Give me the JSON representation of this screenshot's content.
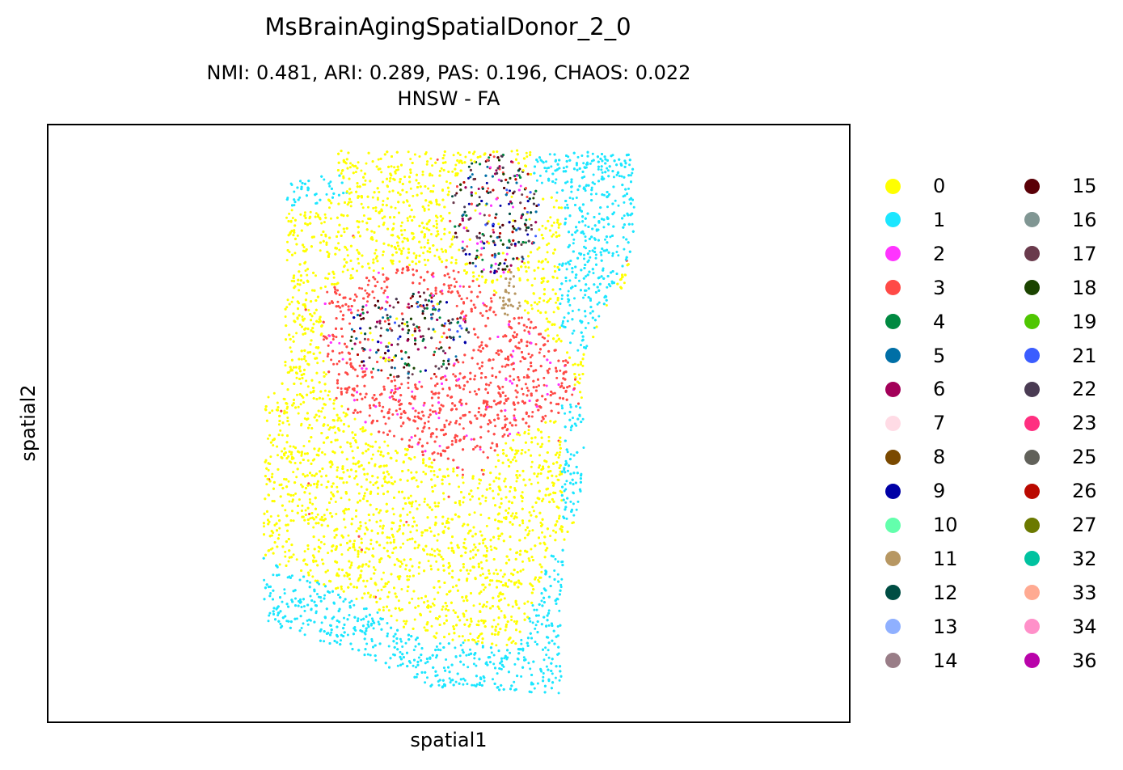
{
  "chart_data": {
    "type": "scatter",
    "title": "MsBrainAgingSpatialDonor_2_0",
    "subtitle_lines": [
      "NMI: 0.481,  ARI: 0.289,  PAS: 0.196,  CHAOS: 0.022",
      "HNSW - FA"
    ],
    "xlabel": "spatial1",
    "ylabel": "spatial2",
    "grid": false,
    "axis_ticks": false,
    "legend_placement": "right, outside, two columns",
    "legend": [
      {
        "label": "0",
        "color": "#ffff00"
      },
      {
        "label": "1",
        "color": "#1ce6ff"
      },
      {
        "label": "2",
        "color": "#ff34ff"
      },
      {
        "label": "3",
        "color": "#ff4a46"
      },
      {
        "label": "4",
        "color": "#008941"
      },
      {
        "label": "5",
        "color": "#006fa6"
      },
      {
        "label": "6",
        "color": "#a30059"
      },
      {
        "label": "7",
        "color": "#ffdbe5"
      },
      {
        "label": "8",
        "color": "#7a4900"
      },
      {
        "label": "9",
        "color": "#0000a6"
      },
      {
        "label": "10",
        "color": "#63ffac"
      },
      {
        "label": "11",
        "color": "#b79762"
      },
      {
        "label": "12",
        "color": "#004d43"
      },
      {
        "label": "13",
        "color": "#8fb0ff"
      },
      {
        "label": "14",
        "color": "#997d87"
      },
      {
        "label": "15",
        "color": "#5a0007"
      },
      {
        "label": "16",
        "color": "#809693"
      },
      {
        "label": "17",
        "color": "#6a3a4c"
      },
      {
        "label": "18",
        "color": "#1b4400"
      },
      {
        "label": "19",
        "color": "#4fc601"
      },
      {
        "label": "21",
        "color": "#3b5dff"
      },
      {
        "label": "22",
        "color": "#4a3b53"
      },
      {
        "label": "23",
        "color": "#ff2f80"
      },
      {
        "label": "25",
        "color": "#61615a"
      },
      {
        "label": "26",
        "color": "#ba0900"
      },
      {
        "label": "27",
        "color": "#6b7900"
      },
      {
        "label": "32",
        "color": "#00c2a0"
      },
      {
        "label": "33",
        "color": "#ffaa92"
      },
      {
        "label": "34",
        "color": "#ff90c9"
      },
      {
        "label": "36",
        "color": "#b903aa"
      }
    ],
    "regions": [
      {
        "cluster": "1",
        "description": "outer rim (top-right, right edge, bottom)"
      },
      {
        "cluster": "0",
        "description": "large central body"
      },
      {
        "cluster": "3",
        "description": "central band"
      },
      {
        "cluster": "11",
        "description": "small patch near center"
      },
      {
        "cluster": "mixed",
        "description": "two speckled blobs (clusters 4,5,6,9,12,15,18,22,26,2)"
      }
    ]
  }
}
